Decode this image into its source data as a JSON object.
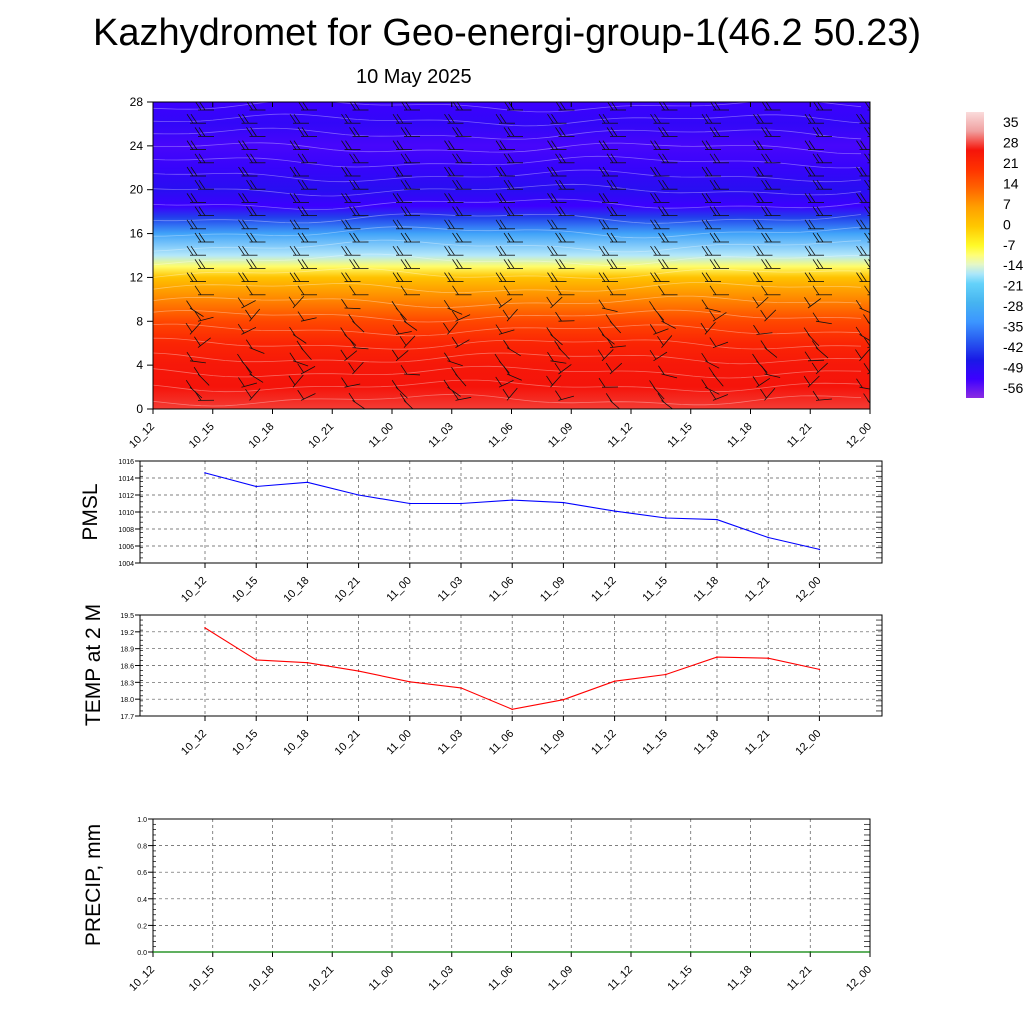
{
  "header": {
    "title": "Kazhydromet for Geo-energi-group-1(46.2 50.23)",
    "date": "10 May 2025"
  },
  "chart_data": [
    {
      "type": "heatmap",
      "name": "vertical temperature and wind cross-section",
      "x_tick_labels": [
        "10_12",
        "10_15",
        "10_18",
        "10_21",
        "11_00",
        "11_03",
        "11_06",
        "11_09",
        "11_12",
        "11_15",
        "11_18",
        "11_21",
        "12_00"
      ],
      "y_tick_labels": [
        "0",
        "4",
        "8",
        "12",
        "16",
        "20",
        "24",
        "28"
      ],
      "ylim": [
        0,
        28
      ],
      "colorbar_labels": [
        "35",
        "28",
        "21",
        "14",
        "7",
        "0",
        "-7",
        "-14",
        "-21",
        "-28",
        "-35",
        "-42",
        "-49",
        "-56"
      ],
      "colorbar_range": [
        -63,
        42
      ],
      "temperature_by_level": [
        {
          "y": 0,
          "value": 30
        },
        {
          "y": 2,
          "value": 28
        },
        {
          "y": 4,
          "value": 27
        },
        {
          "y": 6,
          "value": 24
        },
        {
          "y": 8,
          "value": 18
        },
        {
          "y": 10,
          "value": 10
        },
        {
          "y": 12,
          "value": 1
        },
        {
          "y": 13,
          "value": -10
        },
        {
          "y": 14,
          "value": -17
        },
        {
          "y": 16,
          "value": -32
        },
        {
          "y": 17.5,
          "value": -45
        },
        {
          "y": 18.5,
          "value": -56
        },
        {
          "y": 20,
          "value": -52
        },
        {
          "y": 22,
          "value": -55
        },
        {
          "y": 24,
          "value": -57
        },
        {
          "y": 26,
          "value": -54
        },
        {
          "y": 28,
          "value": -56
        }
      ],
      "colors": {
        "warm": "#ff1c00",
        "cold": "#8a2be2",
        "mid": "#ffff40"
      }
    },
    {
      "type": "line",
      "ylabel": "PMSL",
      "categories": [
        "10_12",
        "10_15",
        "10_18",
        "10_21",
        "11_00",
        "11_03",
        "11_06",
        "11_09",
        "11_12",
        "11_15",
        "11_18",
        "11_21",
        "12_00"
      ],
      "y_tick_labels": [
        "1016",
        "1014",
        "1012",
        "1010",
        "1008",
        "1006",
        "1004"
      ],
      "ylim": [
        1004,
        1016
      ],
      "series": [
        {
          "values": [
            1014.6,
            1013.0,
            1013.5,
            1012.0,
            1011.0,
            1011.0,
            1011.4,
            1011.1,
            1010.1,
            1009.3,
            1009.1,
            1007.0,
            1005.6
          ],
          "color": "#0000ff"
        }
      ]
    },
    {
      "type": "line",
      "ylabel": "TEMP at 2 M",
      "categories": [
        "10_12",
        "10_15",
        "10_18",
        "10_21",
        "11_00",
        "11_03",
        "11_06",
        "11_09",
        "11_12",
        "11_15",
        "11_18",
        "11_21",
        "12_00"
      ],
      "y_tick_labels": [
        "19.5",
        "19.2",
        "18.9",
        "18.6",
        "18.3",
        "18.0",
        "17.7"
      ],
      "ylim": [
        17.7,
        19.5
      ],
      "series": [
        {
          "values": [
            19.27,
            18.7,
            18.65,
            18.5,
            18.31,
            18.2,
            17.82,
            17.99,
            18.32,
            18.44,
            18.75,
            18.73,
            18.53
          ],
          "color": "#ff0000"
        }
      ]
    },
    {
      "type": "line",
      "ylabel": "PRECIP, mm",
      "categories": [
        "10_12",
        "10_15",
        "10_18",
        "10_21",
        "11_00",
        "11_03",
        "11_06",
        "11_09",
        "11_12",
        "11_15",
        "11_18",
        "11_21",
        "12_00"
      ],
      "y_tick_labels": [
        "1.0",
        "0.8",
        "0.6",
        "0.4",
        "0.2",
        "0.0"
      ],
      "ylim": [
        0,
        1
      ],
      "series": [
        {
          "values": [
            0,
            0,
            0,
            0,
            0,
            0,
            0,
            0,
            0,
            0,
            0,
            0,
            0
          ],
          "color": "#008000"
        }
      ]
    }
  ]
}
